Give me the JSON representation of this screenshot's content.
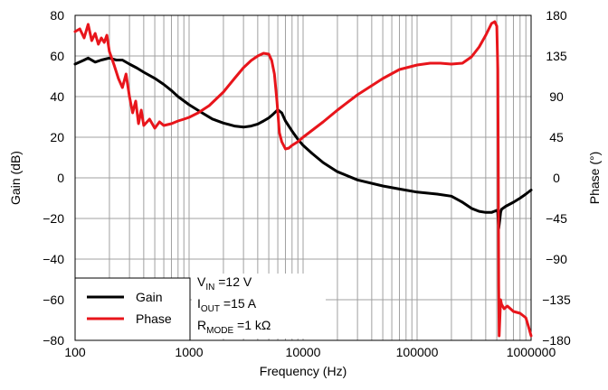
{
  "chart_data": {
    "type": "line",
    "xlabel": "Frequency (Hz)",
    "ylabel_left": "Gain (dB)",
    "ylabel_right": "Phase (°)",
    "x_scale": "log",
    "xlim": [
      100,
      1000000
    ],
    "ylim_left": [
      -80,
      80
    ],
    "ylim_right": [
      -180,
      180
    ],
    "x_ticks": [
      100,
      1000,
      10000,
      100000,
      1000000
    ],
    "x_tick_labels": [
      "100",
      "1000",
      "10000",
      "100000",
      "1000000"
    ],
    "y_ticks_left": [
      -80,
      -60,
      -40,
      -20,
      0,
      20,
      40,
      60,
      80
    ],
    "y_tick_labels_left": [
      "−80",
      "−60",
      "−40",
      "−20",
      "0",
      "20",
      "40",
      "60",
      "80"
    ],
    "y_ticks_right": [
      -180,
      -135,
      -90,
      -45,
      0,
      45,
      90,
      135,
      180
    ],
    "y_tick_labels_right": [
      "−180",
      "−135",
      "−90",
      "−45",
      "0",
      "45",
      "90",
      "135",
      "180"
    ],
    "grid": true,
    "legend_position": "bottom-left",
    "series": [
      {
        "name": "Gain",
        "axis": "left",
        "color": "#000000",
        "x": [
          100,
          120,
          130,
          150,
          170,
          200,
          230,
          260,
          300,
          350,
          400,
          500,
          600,
          700,
          800,
          1000,
          1300,
          1600,
          2000,
          2500,
          3000,
          3500,
          4000,
          4500,
          5000,
          5500,
          6000,
          6500,
          7000,
          8000,
          9000,
          10000,
          12000,
          15000,
          20000,
          30000,
          50000,
          70000,
          100000,
          150000,
          200000,
          250000,
          300000,
          350000,
          400000,
          450000,
          500000,
          510000,
          520000,
          530000,
          540000,
          550000,
          600000,
          700000,
          800000,
          900000,
          1000000
        ],
        "y": [
          56,
          58,
          59,
          57,
          58,
          59,
          58,
          58,
          56,
          54,
          52,
          49,
          46,
          43,
          40,
          36,
          32,
          29,
          27,
          25.5,
          25,
          25.5,
          26.5,
          28,
          29.5,
          31.5,
          33.5,
          32,
          28,
          23,
          19,
          16,
          12,
          7.5,
          3,
          -1,
          -4,
          -5.5,
          -7,
          -8,
          -9,
          -12,
          -15,
          -16.5,
          -17,
          -17,
          -16,
          -17,
          -25,
          -21,
          -17,
          -15.5,
          -14,
          -12,
          -10,
          -8,
          -6
        ]
      },
      {
        "name": "Phase",
        "axis": "right",
        "color": "#e8151b",
        "x": [
          100,
          110,
          120,
          130,
          140,
          150,
          160,
          170,
          180,
          190,
          200,
          220,
          240,
          260,
          280,
          300,
          320,
          340,
          360,
          380,
          400,
          450,
          500,
          550,
          600,
          700,
          800,
          900,
          1000,
          1200,
          1500,
          2000,
          2500,
          3000,
          3500,
          4000,
          4500,
          5000,
          5300,
          5600,
          5900,
          6200,
          6500,
          7000,
          7500,
          8000,
          9000,
          10000,
          15000,
          20000,
          30000,
          50000,
          70000,
          100000,
          130000,
          160000,
          200000,
          250000,
          300000,
          350000,
          400000,
          450000,
          480000,
          500000,
          510000,
          515000,
          520000,
          525000,
          530000,
          540000,
          550000,
          580000,
          620000,
          700000,
          800000,
          900000,
          950000,
          1000000
        ],
        "y": [
          162,
          165,
          155,
          170,
          152,
          160,
          148,
          155,
          150,
          158,
          140,
          125,
          110,
          100,
          115,
          90,
          72,
          85,
          60,
          75,
          58,
          65,
          55,
          62,
          58,
          60,
          63,
          65,
          67,
          72,
          80,
          95,
          110,
          122,
          130,
          135,
          138,
          137,
          130,
          115,
          85,
          50,
          40,
          32,
          33,
          36,
          40,
          45,
          62,
          75,
          92,
          110,
          120,
          125,
          127,
          127,
          126,
          127,
          134,
          145,
          158,
          171,
          173,
          168,
          120,
          20,
          -120,
          -175,
          -160,
          -135,
          -140,
          -145,
          -142,
          -148,
          -150,
          -155,
          -165,
          -175
        ]
      }
    ],
    "annotation": {
      "lines": [
        {
          "main": "V",
          "sub": "IN",
          "rest": " =12 V"
        },
        {
          "main": "I",
          "sub": "OUT",
          "rest": " =15 A"
        },
        {
          "main": "R",
          "sub": "MODE",
          "rest": " =1 kΩ"
        }
      ]
    }
  }
}
